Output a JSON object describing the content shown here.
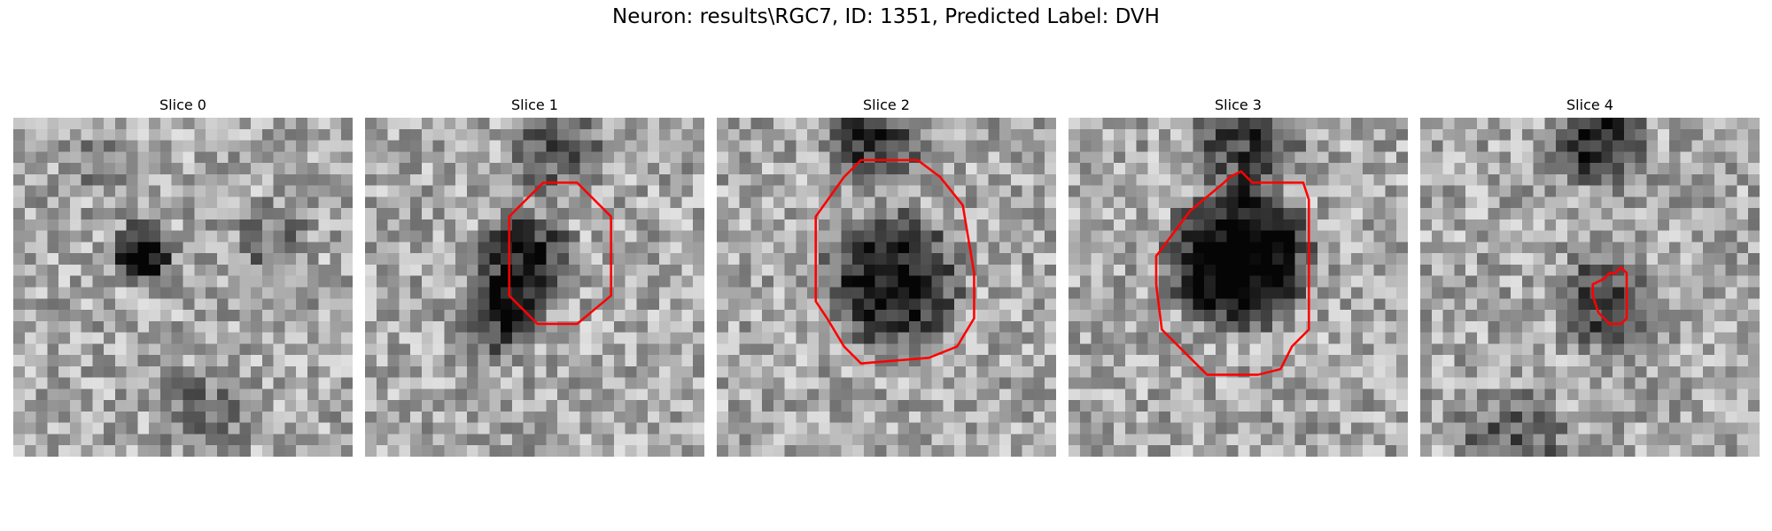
{
  "figure": {
    "title": "Neuron: results\\RGC7, ID: 1351, Predicted Label: DVH"
  },
  "panels": [
    {
      "title": "Slice 0",
      "has_outline": false
    },
    {
      "title": "Slice 1",
      "has_outline": true
    },
    {
      "title": "Slice 2",
      "has_outline": true
    },
    {
      "title": "Slice 3",
      "has_outline": true
    },
    {
      "title": "Slice 4",
      "has_outline": true
    }
  ],
  "colors": {
    "outline": "#ff0000",
    "colormap": "grayscale"
  }
}
